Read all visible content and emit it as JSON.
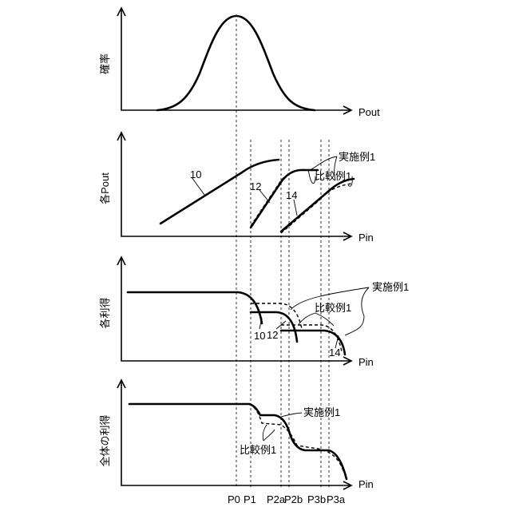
{
  "panels": {
    "prob": {
      "ylabel": "確率",
      "xlabel": "Pout"
    },
    "pout": {
      "ylabel": "各Pout",
      "xlabel": "Pin",
      "amp10": "10",
      "amp12": "12",
      "amp14": "14",
      "embodiment": "実施例1",
      "comparison": "比較例1"
    },
    "gain": {
      "ylabel": "各利得",
      "xlabel": "Pin",
      "amp10": "10",
      "amp12": "12",
      "amp14": "14",
      "embodiment": "実施例1",
      "comparison": "比較例1"
    },
    "total": {
      "ylabel": "全体の利得",
      "xlabel": "Pin",
      "embodiment": "実施例1",
      "comparison": "比較例1"
    }
  },
  "ticks": [
    "P0",
    "P1",
    "P2a",
    "P2b",
    "P3b",
    "P3a"
  ]
}
